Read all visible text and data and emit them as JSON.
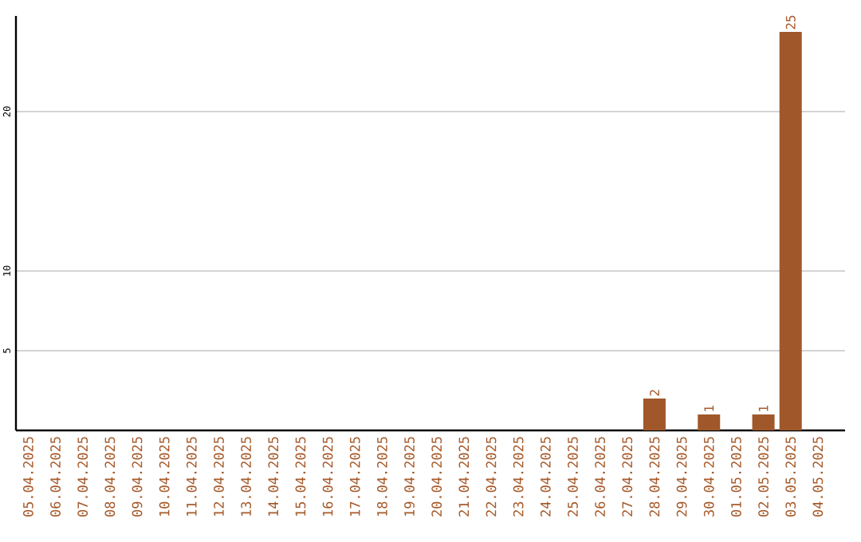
{
  "chart_data": {
    "type": "bar",
    "categories": [
      "05.04.2025",
      "06.04.2025",
      "07.04.2025",
      "08.04.2025",
      "09.04.2025",
      "10.04.2025",
      "11.04.2025",
      "12.04.2025",
      "13.04.2025",
      "14.04.2025",
      "15.04.2025",
      "16.04.2025",
      "17.04.2025",
      "18.04.2025",
      "19.04.2025",
      "20.04.2025",
      "21.04.2025",
      "22.04.2025",
      "23.04.2025",
      "24.04.2025",
      "25.04.2025",
      "26.04.2025",
      "27.04.2025",
      "28.04.2025",
      "29.04.2025",
      "30.04.2025",
      "01.05.2025",
      "02.05.2025",
      "03.05.2025",
      "04.05.2025"
    ],
    "values": [
      0,
      0,
      0,
      0,
      0,
      0,
      0,
      0,
      0,
      0,
      0,
      0,
      0,
      0,
      0,
      0,
      0,
      0,
      0,
      0,
      0,
      0,
      0,
      2,
      0,
      1,
      0,
      1,
      25,
      0
    ],
    "value_labels": [
      null,
      null,
      null,
      null,
      null,
      null,
      null,
      null,
      null,
      null,
      null,
      null,
      null,
      null,
      null,
      null,
      null,
      null,
      null,
      null,
      null,
      null,
      null,
      "2",
      null,
      "1",
      null,
      "1",
      "25",
      null
    ],
    "color": "#a0572a",
    "ylim": [
      0,
      26
    ],
    "yticks": [
      5,
      10,
      20
    ],
    "grid": "y"
  }
}
